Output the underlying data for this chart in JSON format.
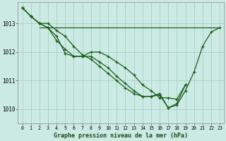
{
  "title": "Graphe pression niveau de la mer (hPa)",
  "bg_color": "#cceae4",
  "line_color": "#1a5c1a",
  "grid_color": "#aad4cc",
  "xlim": [
    -0.5,
    23.5
  ],
  "ylim": [
    1009.5,
    1013.75
  ],
  "yticks": [
    1010,
    1011,
    1012,
    1013
  ],
  "xticks": [
    0,
    1,
    2,
    3,
    4,
    5,
    6,
    7,
    8,
    9,
    10,
    11,
    12,
    13,
    14,
    15,
    16,
    17,
    18,
    19,
    20,
    21,
    22,
    23
  ],
  "series": [
    {
      "x": [
        0,
        1,
        2,
        3,
        4,
        5,
        6,
        7,
        8,
        9,
        10,
        11,
        12,
        13,
        14,
        15,
        16,
        17,
        18,
        19,
        20,
        21,
        22,
        23
      ],
      "y": [
        1013.55,
        1013.25,
        1013.0,
        1013.0,
        1012.75,
        1012.55,
        1012.2,
        1011.9,
        1011.75,
        1011.5,
        1011.25,
        1011.0,
        1010.75,
        1010.55,
        1010.45,
        1010.45,
        1010.55,
        1010.05,
        1010.15,
        1010.65,
        1011.3,
        1012.2,
        1012.7,
        1012.85
      ]
    },
    {
      "x": [
        0,
        1,
        2,
        3,
        4,
        5,
        6,
        7,
        8,
        9,
        10,
        11,
        12,
        13,
        14,
        15,
        16,
        17,
        18,
        19
      ],
      "y": [
        1013.55,
        1013.25,
        1013.0,
        1012.85,
        1012.4,
        1012.1,
        1011.85,
        1011.85,
        1011.85,
        1011.65,
        1011.45,
        1011.15,
        1010.9,
        1010.65,
        1010.45,
        1010.45,
        1010.5,
        1010.05,
        1010.2,
        1010.85
      ]
    },
    {
      "x": [
        0,
        1,
        2,
        3,
        4,
        5,
        6,
        7,
        8,
        9,
        10,
        11,
        12,
        13,
        14,
        15,
        16,
        17,
        18,
        19
      ],
      "y": [
        1013.55,
        1013.25,
        1013.0,
        1012.85,
        1012.55,
        1011.95,
        1011.85,
        1011.85,
        1012.0,
        1012.0,
        1011.85,
        1011.65,
        1011.45,
        1011.2,
        1010.85,
        1010.65,
        1010.4,
        1010.4,
        1010.35,
        1010.85
      ]
    },
    {
      "x": [
        2,
        23
      ],
      "y": [
        1012.85,
        1012.85
      ]
    }
  ]
}
